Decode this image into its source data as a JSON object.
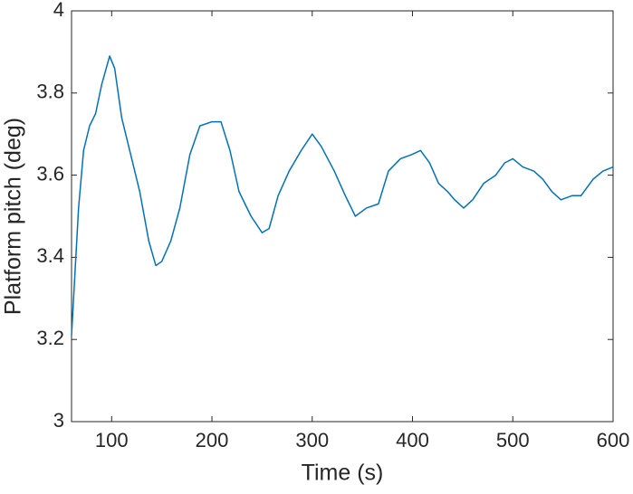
{
  "chart_data": {
    "type": "line",
    "xlabel": "Time (s)",
    "ylabel": "Platform pitch (deg)",
    "x": [
      60,
      67,
      72,
      78,
      84,
      90,
      98,
      103,
      110,
      119,
      128,
      137,
      144,
      150,
      159,
      168,
      178,
      188,
      200,
      209,
      218,
      227,
      239,
      250,
      257,
      266,
      277,
      289,
      300,
      309,
      322,
      333,
      343,
      354,
      366,
      376,
      388,
      399,
      408,
      417,
      426,
      435,
      442,
      451,
      460,
      471,
      483,
      492,
      500,
      510,
      521,
      530,
      539,
      548,
      559,
      568,
      580,
      590,
      600
    ],
    "series": [
      {
        "name": "Platform pitch",
        "color": "#0072bd",
        "values": [
          3.21,
          3.52,
          3.66,
          3.72,
          3.75,
          3.82,
          3.89,
          3.86,
          3.74,
          3.65,
          3.56,
          3.44,
          3.38,
          3.39,
          3.44,
          3.52,
          3.65,
          3.72,
          3.73,
          3.73,
          3.66,
          3.56,
          3.5,
          3.46,
          3.47,
          3.55,
          3.61,
          3.66,
          3.7,
          3.67,
          3.61,
          3.55,
          3.5,
          3.52,
          3.53,
          3.61,
          3.64,
          3.65,
          3.66,
          3.63,
          3.58,
          3.56,
          3.54,
          3.52,
          3.54,
          3.58,
          3.6,
          3.63,
          3.64,
          3.62,
          3.61,
          3.59,
          3.56,
          3.54,
          3.55,
          3.55,
          3.59,
          3.61,
          3.62
        ]
      }
    ],
    "xlim": [
      60,
      600
    ],
    "xticks": [
      100,
      200,
      300,
      400,
      500,
      600
    ],
    "ylim": [
      3,
      4
    ],
    "yticks": [
      3,
      3.2,
      3.4,
      3.6,
      3.8,
      4
    ]
  }
}
